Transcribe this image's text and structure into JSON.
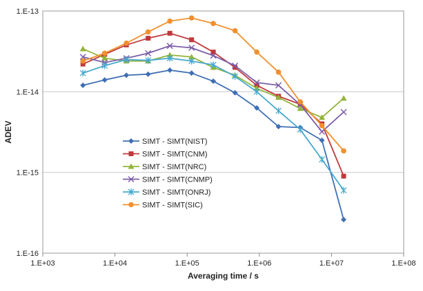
{
  "chart_data": {
    "type": "line",
    "xscale": "log",
    "yscale": "log",
    "xlabel": "Averaging time / s",
    "ylabel": "ADEV",
    "xlim": [
      1000,
      100000000
    ],
    "ylim": [
      1e-16,
      1e-13
    ],
    "x_tick_values": [
      1000,
      10000,
      100000,
      1000000,
      10000000,
      100000000
    ],
    "x_tick_labels": [
      "1.E+03",
      "1.E+04",
      "1.E+05",
      "1.E+06",
      "1.E+07",
      "1.E+08"
    ],
    "y_tick_values": [
      1e-16,
      1e-15,
      1e-14,
      1e-13
    ],
    "y_tick_labels": [
      "1.E-16",
      "1.E-15",
      "1.E-14",
      "1.E-13"
    ],
    "grid": "horizontal",
    "legend_position": "center-left",
    "x": [
      3600,
      7200,
      14400,
      28800,
      57600,
      115200,
      230400,
      460800,
      921600,
      1843200,
      3686400,
      7372800,
      14745600
    ],
    "series": [
      {
        "name": "SIMT -  SIMT(NIST)",
        "color": "#3f6fb5",
        "marker": "diamond",
        "values": [
          1.2e-14,
          1.4e-14,
          1.6e-14,
          1.65e-14,
          1.85e-14,
          1.7e-14,
          1.35e-14,
          9.7e-15,
          6.3e-15,
          3.7e-15,
          3.6e-15,
          2.5e-15,
          2.6e-16
        ]
      },
      {
        "name": "SIMT - SIMT(CNM)",
        "color": "#c0393b",
        "marker": "square",
        "values": [
          2.2e-14,
          2.9e-14,
          3.8e-14,
          4.6e-14,
          5.3e-14,
          4.4e-14,
          3.1e-14,
          2e-14,
          1.2e-14,
          8.8e-15,
          7e-15,
          4e-15,
          9e-16
        ]
      },
      {
        "name": "SIMT - SIMT(NRC)",
        "color": "#93b43a",
        "marker": "triangle",
        "values": [
          3.4e-14,
          2.6e-14,
          2.4e-14,
          2.4e-14,
          2.85e-14,
          2.7e-14,
          2e-14,
          1.6e-14,
          1.1e-14,
          8.5e-15,
          6.2e-15,
          4.8e-15,
          8.3e-15
        ]
      },
      {
        "name": "SIMT - SIMT(CNMP)",
        "color": "#7b5ea7",
        "marker": "x",
        "values": [
          2.7e-14,
          2.3e-14,
          2.6e-14,
          3e-14,
          3.7e-14,
          3.5e-14,
          2.8e-14,
          2.1e-14,
          1.3e-14,
          1.2e-14,
          6.9e-15,
          3.2e-15,
          5.6e-15
        ]
      },
      {
        "name": "SIMT - SIMT(ONRJ)",
        "color": "#46a9cf",
        "marker": "star",
        "values": [
          1.7e-14,
          2.1e-14,
          2.5e-14,
          2.45e-14,
          2.6e-14,
          2.4e-14,
          2.15e-14,
          1.55e-14,
          1e-14,
          5.8e-15,
          3.4e-15,
          1.45e-15,
          6e-16
        ]
      },
      {
        "name": "SIMT - SIMT(SIC)",
        "color": "#f0902e",
        "marker": "circle",
        "values": [
          2.4e-14,
          3e-14,
          4e-14,
          5.5e-14,
          7.5e-14,
          8.2e-14,
          7e-14,
          5.7e-14,
          3.1e-14,
          1.75e-14,
          7.5e-15,
          3.8e-15,
          1.85e-15
        ]
      }
    ]
  }
}
